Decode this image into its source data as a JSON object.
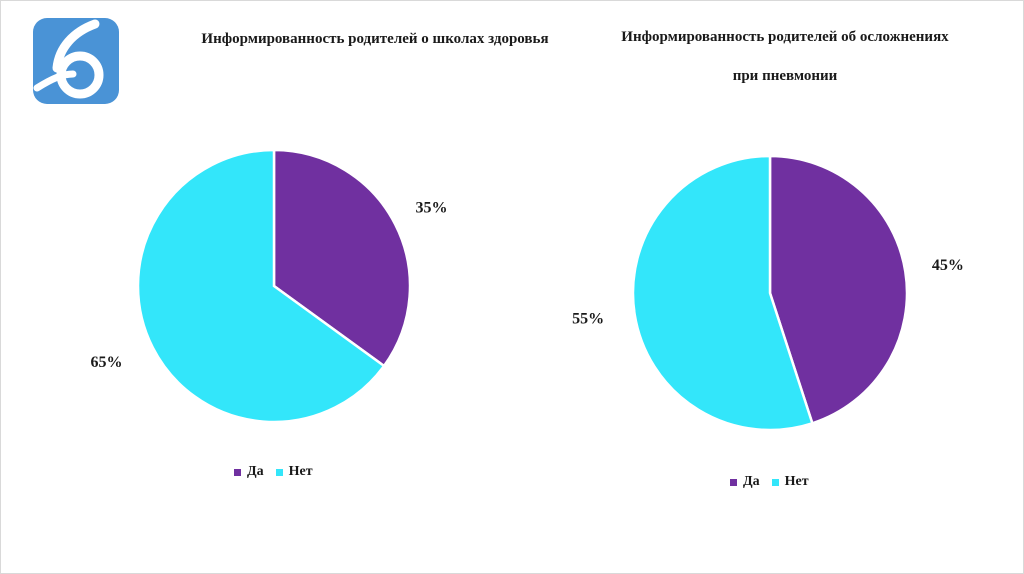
{
  "colors": {
    "yes": "#7030A0",
    "no": "#33E6FA",
    "logo_bg": "#4A93D6"
  },
  "logo": {
    "icon": "digit-six-logo-icon"
  },
  "chart_data": [
    {
      "type": "pie",
      "title": "Информированность родителей о школах здоровья",
      "categories": [
        "Да",
        "Нет"
      ],
      "values": [
        35,
        65
      ],
      "labels": [
        "35%",
        "65%"
      ],
      "legend": {
        "position": "bottom",
        "entries": [
          "Да",
          "Нет"
        ]
      }
    },
    {
      "type": "pie",
      "title": "Информированность родителей об осложнениях при пневмонии",
      "categories": [
        "Да",
        "Нет"
      ],
      "values": [
        45,
        55
      ],
      "labels": [
        "45%",
        "55%"
      ],
      "legend": {
        "position": "bottom",
        "entries": [
          "Да",
          "Нет"
        ]
      }
    }
  ]
}
